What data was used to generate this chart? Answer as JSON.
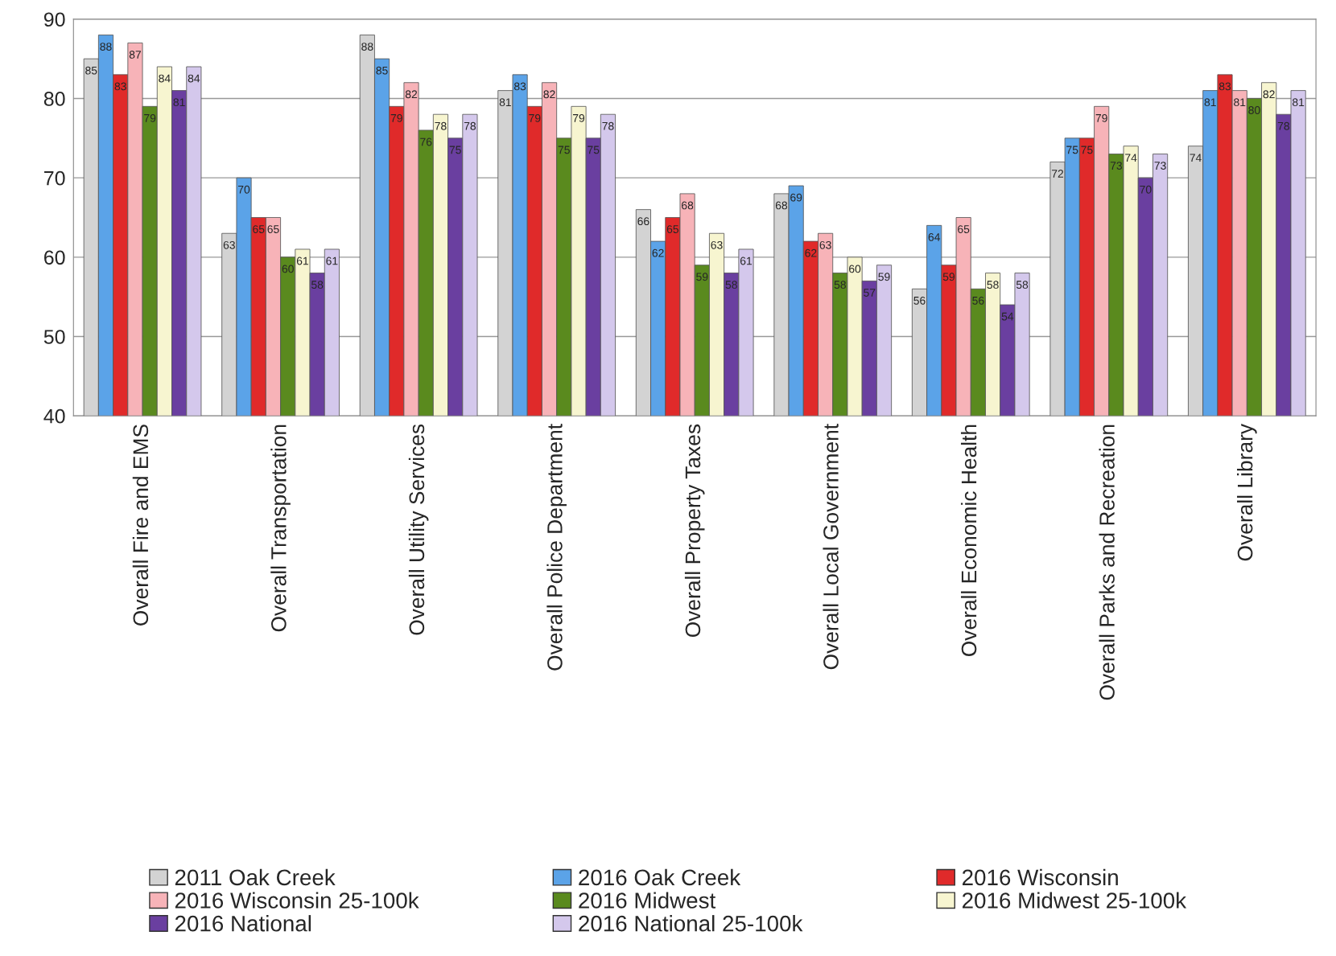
{
  "chart_data": {
    "type": "bar",
    "categories": [
      "Overall Fire and EMS",
      "Overall Transportation",
      "Overall Utility Services",
      "Overall Police Department",
      "Overall Property Taxes",
      "Overall Local Government",
      "Overall Economic Health",
      "Overall Parks and Recreation",
      "Overall Library"
    ],
    "series": [
      {
        "name": "2011 Oak Creek",
        "color": "#d3d3d3",
        "values": [
          85,
          63,
          88,
          81,
          66,
          68,
          56,
          72,
          74
        ]
      },
      {
        "name": "2016 Oak Creek",
        "color": "#5ba3e8",
        "values": [
          88,
          70,
          85,
          83,
          62,
          69,
          64,
          75,
          81
        ]
      },
      {
        "name": "2016 Wisconsin",
        "color": "#e02a2a",
        "values": [
          83,
          65,
          79,
          79,
          65,
          62,
          59,
          75,
          83
        ]
      },
      {
        "name": "2016 Wisconsin 25-100k",
        "color": "#f7b3b8",
        "values": [
          87,
          65,
          82,
          82,
          68,
          63,
          65,
          79,
          81
        ]
      },
      {
        "name": "2016 Midwest",
        "color": "#5a8a1e",
        "values": [
          79,
          60,
          76,
          75,
          59,
          58,
          56,
          73,
          80
        ]
      },
      {
        "name": "2016 Midwest 25-100k",
        "color": "#f7f5d0",
        "values": [
          84,
          61,
          78,
          79,
          63,
          60,
          58,
          74,
          82
        ]
      },
      {
        "name": "2016 National",
        "color": "#6a3fa0",
        "values": [
          81,
          58,
          75,
          75,
          58,
          57,
          54,
          70,
          78
        ]
      },
      {
        "name": "2016 National 25-100k",
        "color": "#d4c8ec",
        "values": [
          84,
          61,
          78,
          78,
          61,
          59,
          58,
          73,
          81
        ]
      }
    ],
    "ylim": [
      40,
      90
    ],
    "yticks": [
      40,
      50,
      60,
      70,
      80,
      90
    ],
    "grid": "y",
    "legend": "bottom",
    "data_labels": true
  }
}
